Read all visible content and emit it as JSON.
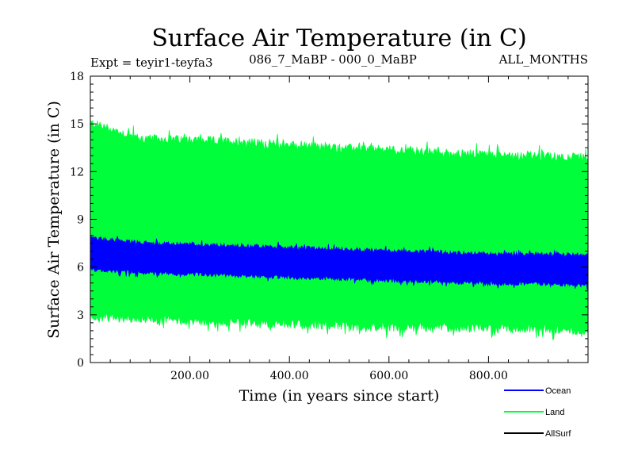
{
  "chart_data": {
    "type": "line",
    "title": "Surface Air Temperature (in C)",
    "subtitle_left": "Expt = teyir1-teyfa3",
    "subtitle_center": "086_7_MaBP - 000_0_MaBP",
    "subtitle_right": "ALL_MONTHS",
    "xlabel": "Time (in years since start)",
    "ylabel": "Surface Air Temperature (in C)",
    "xlim": [
      0,
      1000
    ],
    "ylim": [
      0,
      18
    ],
    "x_ticks": [
      200,
      400,
      600,
      800
    ],
    "x_tick_labels": [
      "200.00",
      "400.00",
      "600.00",
      "800.00"
    ],
    "y_ticks": [
      0,
      3,
      6,
      9,
      12,
      15,
      18
    ],
    "y_tick_labels": [
      "0",
      "3",
      "6",
      "9",
      "12",
      "15",
      "18"
    ],
    "series": [
      {
        "name": "Land",
        "color": "#00ff3a",
        "x": [
          0,
          100,
          200,
          300,
          400,
          500,
          600,
          700,
          800,
          900,
          1000
        ],
        "upper": [
          15.0,
          14.0,
          13.9,
          13.8,
          13.6,
          13.4,
          13.3,
          13.1,
          13.0,
          12.9,
          12.8
        ],
        "lower": [
          3.0,
          2.8,
          2.7,
          2.6,
          2.5,
          2.4,
          2.3,
          2.3,
          2.2,
          2.2,
          2.1
        ]
      },
      {
        "name": "Ocean",
        "color": "#0000ff",
        "x": [
          0,
          100,
          200,
          300,
          400,
          500,
          600,
          700,
          800,
          900,
          1000
        ],
        "upper": [
          7.8,
          7.5,
          7.4,
          7.3,
          7.2,
          7.1,
          7.0,
          6.9,
          6.8,
          6.8,
          6.7
        ],
        "lower": [
          5.9,
          5.7,
          5.6,
          5.5,
          5.4,
          5.3,
          5.2,
          5.1,
          5.0,
          5.0,
          4.9
        ]
      },
      {
        "name": "AllSurf",
        "color": "#000000",
        "x": [],
        "upper": [],
        "lower": []
      }
    ],
    "legend_position": "bottom-right"
  }
}
